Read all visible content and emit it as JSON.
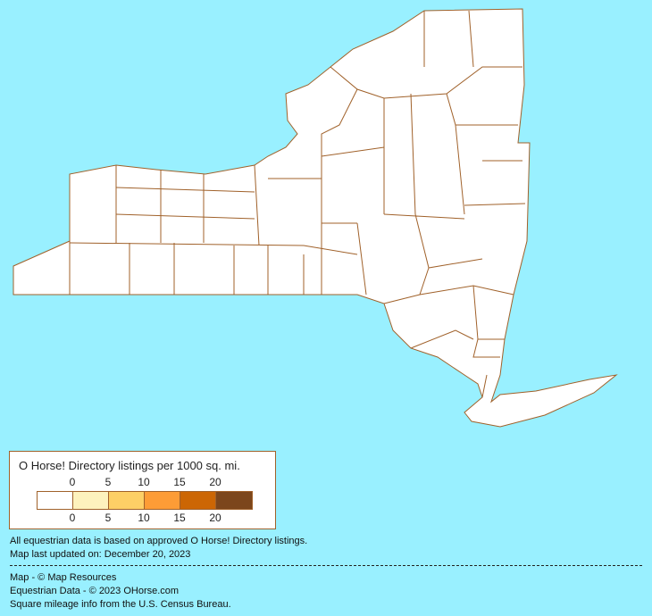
{
  "map": {
    "region": "New York",
    "land_color": "#ffffff",
    "border_color": "#a0612a",
    "water_color": "#99f0ff"
  },
  "legend": {
    "title": "O Horse! Directory listings per 1000 sq. mi.",
    "ticks": [
      "0",
      "5",
      "10",
      "15",
      "20"
    ],
    "bins": [
      {
        "color": "#ffffff"
      },
      {
        "color": "#fdf2bd"
      },
      {
        "color": "#fdcf66"
      },
      {
        "color": "#fd9c36"
      },
      {
        "color": "#cc6604"
      },
      {
        "color": "#7c461c"
      }
    ]
  },
  "notes": {
    "data_basis": "All equestrian data is based on approved O Horse! Directory listings.",
    "updated": "Map last updated on: December 20, 2023",
    "map_credit": "Map - © Map Resources",
    "data_credit": "Equestrian Data - © 2023 OHorse.com",
    "census_credit": "Square mileage info from the U.S. Census Bureau."
  }
}
